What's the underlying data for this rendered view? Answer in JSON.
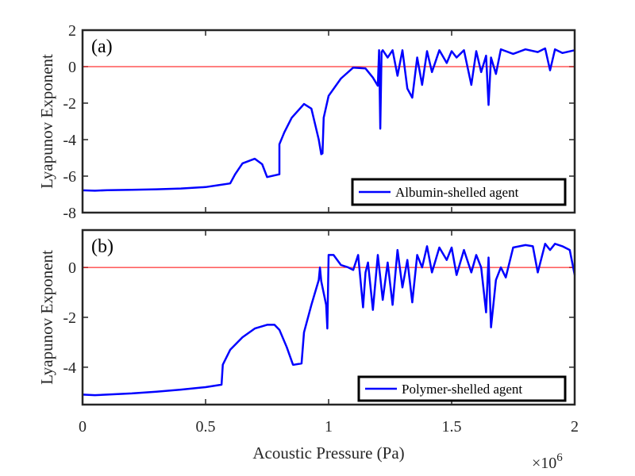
{
  "chart_data": [
    {
      "type": "line",
      "panel_label": "(a)",
      "ylabel": "Lyapunov Exponent",
      "xlabel": "",
      "xlim": [
        0,
        2000000
      ],
      "ylim": [
        -8,
        2
      ],
      "yticks": [
        2,
        0,
        -2,
        -4,
        -6,
        -8
      ],
      "ytick_labels": [
        "2",
        "0",
        "-2",
        "-4",
        "-6",
        "-8"
      ],
      "x_tick_labels_shown": false,
      "reference_line": 0,
      "reference_color": "#ff0000",
      "series": [
        {
          "name": "Albumin-shelled agent",
          "color": "#0000ff",
          "x": [
            0,
            0.05,
            0.1,
            0.2,
            0.3,
            0.4,
            0.5,
            0.55,
            0.6,
            0.62,
            0.65,
            0.7,
            0.73,
            0.75,
            0.8,
            0.8,
            0.82,
            0.85,
            0.9,
            0.93,
            0.96,
            0.97,
            0.975,
            0.98,
            1.0,
            1.05,
            1.1,
            1.15,
            1.18,
            1.2,
            1.205,
            1.21,
            1.215,
            1.22,
            1.24,
            1.26,
            1.28,
            1.3,
            1.32,
            1.34,
            1.36,
            1.38,
            1.4,
            1.42,
            1.45,
            1.48,
            1.5,
            1.52,
            1.55,
            1.58,
            1.6,
            1.62,
            1.64,
            1.65,
            1.66,
            1.68,
            1.7,
            1.75,
            1.8,
            1.85,
            1.88,
            1.9,
            1.92,
            1.95,
            2.0
          ],
          "y": [
            -6.78,
            -6.8,
            -6.77,
            -6.75,
            -6.72,
            -6.68,
            -6.6,
            -6.5,
            -6.4,
            -5.9,
            -5.3,
            -5.05,
            -5.35,
            -6.05,
            -5.9,
            -4.25,
            -3.6,
            -2.8,
            -2.05,
            -2.3,
            -4.0,
            -4.8,
            -4.75,
            -2.8,
            -1.6,
            -0.65,
            -0.05,
            -0.1,
            -0.6,
            -1.05,
            0.9,
            -3.4,
            0.8,
            0.9,
            0.5,
            0.9,
            -0.5,
            0.9,
            -1.2,
            -1.7,
            0.5,
            -1.0,
            0.85,
            -0.3,
            0.9,
            0.2,
            0.85,
            0.5,
            0.9,
            -1.0,
            0.85,
            -0.3,
            0.6,
            -2.1,
            0.5,
            -0.4,
            0.95,
            0.7,
            0.95,
            0.8,
            1.0,
            -0.2,
            0.95,
            0.75,
            0.9
          ]
        }
      ]
    },
    {
      "type": "line",
      "panel_label": "(b)",
      "ylabel": "Lyapunov Exponent",
      "xlabel": "Acoustic Pressure (Pa)",
      "xlim": [
        0,
        2000000
      ],
      "ylim": [
        -5.5,
        1.5
      ],
      "yticks": [
        0,
        -2,
        -4
      ],
      "ytick_labels": [
        "0",
        "-2",
        "-4"
      ],
      "xticks": [
        0,
        0.5,
        1,
        1.5,
        2
      ],
      "xtick_labels": [
        "0",
        "0.5",
        "1",
        "1.5",
        "2"
      ],
      "x_multiplier": "×10",
      "x_multiplier_exp": "6",
      "reference_line": 0,
      "reference_color": "#ff0000",
      "series": [
        {
          "name": "Polymer-shelled agent",
          "color": "#0000ff",
          "x": [
            0,
            0.05,
            0.1,
            0.2,
            0.3,
            0.4,
            0.5,
            0.565,
            0.57,
            0.6,
            0.65,
            0.7,
            0.75,
            0.78,
            0.8,
            0.83,
            0.855,
            0.86,
            0.89,
            0.9,
            0.93,
            0.96,
            0.965,
            0.97,
            0.99,
            0.995,
            1.0,
            1.02,
            1.05,
            1.08,
            1.1,
            1.12,
            1.14,
            1.15,
            1.16,
            1.18,
            1.2,
            1.22,
            1.24,
            1.26,
            1.28,
            1.3,
            1.32,
            1.34,
            1.36,
            1.38,
            1.4,
            1.42,
            1.45,
            1.48,
            1.5,
            1.52,
            1.55,
            1.58,
            1.6,
            1.62,
            1.64,
            1.65,
            1.66,
            1.68,
            1.7,
            1.72,
            1.75,
            1.8,
            1.83,
            1.85,
            1.88,
            1.9,
            1.92,
            1.95,
            1.98,
            2.0
          ],
          "y": [
            -5.1,
            -5.12,
            -5.1,
            -5.05,
            -4.98,
            -4.9,
            -4.8,
            -4.7,
            -3.9,
            -3.3,
            -2.8,
            -2.45,
            -2.3,
            -2.3,
            -2.5,
            -3.2,
            -3.9,
            -3.9,
            -3.85,
            -2.6,
            -1.5,
            -0.5,
            0.0,
            -0.55,
            -1.5,
            -2.45,
            0.5,
            0.5,
            0.1,
            0.0,
            -0.1,
            0.5,
            -1.6,
            -0.2,
            0.2,
            -1.7,
            0.5,
            -1.3,
            0.2,
            -1.5,
            0.7,
            -0.8,
            0.3,
            -1.4,
            0.5,
            0.0,
            0.85,
            -0.2,
            0.8,
            0.3,
            0.8,
            -0.3,
            0.7,
            -0.2,
            0.5,
            0.0,
            -1.8,
            0.4,
            -2.4,
            -0.5,
            0.0,
            -0.4,
            0.8,
            0.9,
            0.85,
            -0.2,
            0.95,
            0.7,
            0.95,
            0.85,
            0.7,
            -0.3
          ]
        }
      ]
    }
  ]
}
